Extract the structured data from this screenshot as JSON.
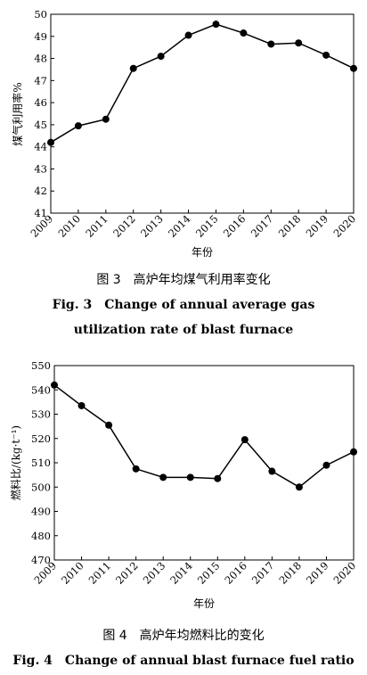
{
  "chart_data": [
    {
      "type": "line",
      "x": [
        2009,
        2010,
        2011,
        2012,
        2013,
        2014,
        2015,
        2016,
        2017,
        2018,
        2019,
        2020
      ],
      "series": [
        {
          "values": [
            44.2,
            44.95,
            45.25,
            47.55,
            48.1,
            49.05,
            49.55,
            49.15,
            48.65,
            48.7,
            48.15,
            47.55
          ]
        }
      ],
      "ylim": [
        41,
        50
      ],
      "yticks": [
        41,
        42,
        43,
        44,
        45,
        46,
        47,
        48,
        49,
        50
      ],
      "xlabel": "年份",
      "ylabel": "煤气利用率%",
      "grid": false,
      "caption_cn": "图 3　高炉年均煤气利用率变化",
      "caption_en_1": "Fig. 3　Change of annual average gas",
      "caption_en_2": "utilization rate of blast furnace"
    },
    {
      "type": "line",
      "x": [
        2009,
        2010,
        2011,
        2012,
        2013,
        2014,
        2015,
        2016,
        2017,
        2018,
        2019,
        2020
      ],
      "series": [
        {
          "values": [
            542,
            533.5,
            525.5,
            507.5,
            504,
            504,
            503.5,
            519.5,
            506.5,
            500,
            509,
            514.5
          ]
        }
      ],
      "ylim": [
        470,
        550
      ],
      "yticks": [
        470,
        480,
        490,
        500,
        510,
        520,
        530,
        540,
        550
      ],
      "xlabel": "年份",
      "ylabel": "燃料比/(kg·t⁻¹)",
      "grid": false,
      "caption_cn": "图 4　高炉年均燃料比的变化",
      "caption_en_1": "Fig. 4　Change of annual blast furnace fuel ratio"
    }
  ]
}
